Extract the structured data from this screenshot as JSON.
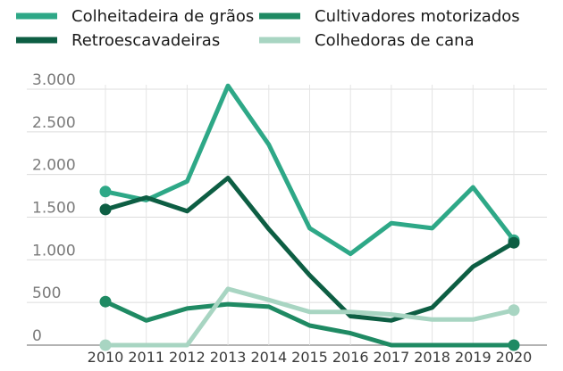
{
  "chart_data": {
    "type": "line",
    "title": "",
    "xlabel": "",
    "ylabel": "",
    "ylim": [
      0,
      3000
    ],
    "yticks": [
      0,
      500,
      1000,
      1500,
      2000,
      2500,
      3000
    ],
    "ytick_labels": [
      "0",
      "500",
      "1.000",
      "1.500",
      "2.000",
      "2.500",
      "3.000"
    ],
    "categories": [
      "2010",
      "2011",
      "2012",
      "2013",
      "2014",
      "2015",
      "2016",
      "2017",
      "2018",
      "2019",
      "2020"
    ],
    "grid": "horizontal",
    "legend_position": "top",
    "series": [
      {
        "name": "Colheitadeira de grãos",
        "color": "#2ea887",
        "values": [
          1800,
          1700,
          1920,
          3040,
          2350,
          1370,
          1070,
          1430,
          1370,
          1850,
          1230
        ]
      },
      {
        "name": "Cultivadores motorizados",
        "color": "#1f8a63",
        "values": [
          510,
          290,
          430,
          480,
          450,
          230,
          140,
          0,
          0,
          0,
          0
        ]
      },
      {
        "name": "Retroescavadeiras",
        "color": "#0d5e43",
        "values": [
          1590,
          1730,
          1570,
          1960,
          1360,
          820,
          340,
          290,
          440,
          920,
          1200
        ]
      },
      {
        "name": "Colhedoras de cana",
        "color": "#a8d5c2",
        "values": [
          0,
          0,
          0,
          660,
          530,
          390,
          390,
          360,
          300,
          300,
          410
        ]
      }
    ]
  }
}
